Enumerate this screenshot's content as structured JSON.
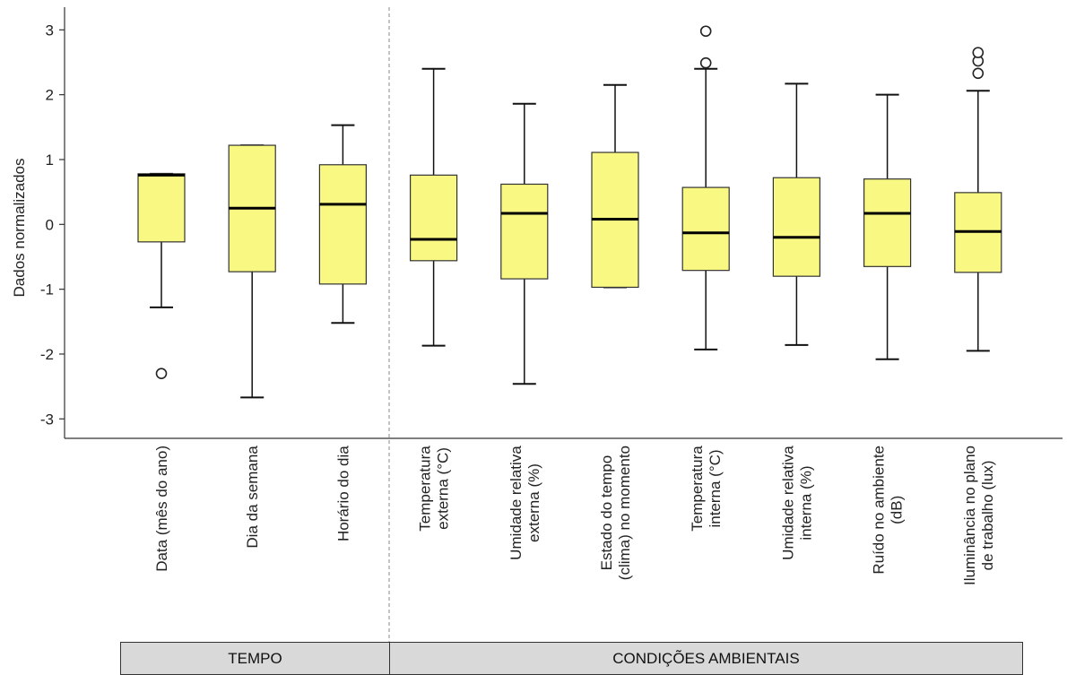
{
  "chart_data": {
    "type": "boxplot",
    "ylabel": "Dados normalizados",
    "ylim": [
      -3.3,
      3.35
    ],
    "yticks": [
      3,
      2,
      1,
      0,
      -1,
      -2,
      -3
    ],
    "categories": [
      [
        "Data (mês do ano)"
      ],
      [
        "Dia da semana"
      ],
      [
        "Horário do dia"
      ],
      [
        "Temperatura",
        "externa (°C)"
      ],
      [
        "Umidade relativa",
        "externa (%)"
      ],
      [
        "Estado do tempo",
        "(clima) no momento"
      ],
      [
        "Temperatura",
        "interna (°C)"
      ],
      [
        "Umidade relativa",
        "interna (%)"
      ],
      [
        "Ruído no ambiente",
        "(dB)"
      ],
      [
        "Iluminância no plano",
        "de trabalho (lux)"
      ]
    ],
    "boxes": [
      {
        "q1": -0.27,
        "median": 0.76,
        "q3": 0.78,
        "whisker_low": -1.28,
        "whisker_high": 0.78,
        "outliers": [
          -2.3
        ]
      },
      {
        "q1": -0.73,
        "median": 0.25,
        "q3": 1.22,
        "whisker_low": -2.67,
        "whisker_high": 1.22,
        "outliers": []
      },
      {
        "q1": -0.92,
        "median": 0.31,
        "q3": 0.92,
        "whisker_low": -1.52,
        "whisker_high": 1.53,
        "outliers": []
      },
      {
        "q1": -0.56,
        "median": -0.23,
        "q3": 0.76,
        "whisker_low": -1.87,
        "whisker_high": 2.4,
        "outliers": []
      },
      {
        "q1": -0.84,
        "median": 0.17,
        "q3": 0.62,
        "whisker_low": -2.46,
        "whisker_high": 1.86,
        "outliers": []
      },
      {
        "q1": -0.97,
        "median": 0.08,
        "q3": 1.11,
        "whisker_low": -0.97,
        "whisker_high": 2.15,
        "outliers": []
      },
      {
        "q1": -0.71,
        "median": -0.13,
        "q3": 0.57,
        "whisker_low": -1.93,
        "whisker_high": 2.4,
        "outliers": [
          2.49,
          2.98
        ]
      },
      {
        "q1": -0.8,
        "median": -0.2,
        "q3": 0.72,
        "whisker_low": -1.86,
        "whisker_high": 2.17,
        "outliers": []
      },
      {
        "q1": -0.65,
        "median": 0.17,
        "q3": 0.7,
        "whisker_low": -2.08,
        "whisker_high": 2.0,
        "outliers": []
      },
      {
        "q1": -0.74,
        "median": -0.11,
        "q3": 0.49,
        "whisker_low": -1.95,
        "whisker_high": 2.06,
        "outliers": [
          2.33,
          2.52,
          2.65
        ]
      }
    ],
    "box_color": "#f8f882",
    "groups": [
      {
        "label": "TEMPO",
        "span": [
          0,
          2
        ]
      },
      {
        "label": "CONDIÇÕES AMBIENTAIS",
        "span": [
          3,
          9
        ]
      }
    ],
    "group_color": "#d9d9d9",
    "grid": false
  }
}
